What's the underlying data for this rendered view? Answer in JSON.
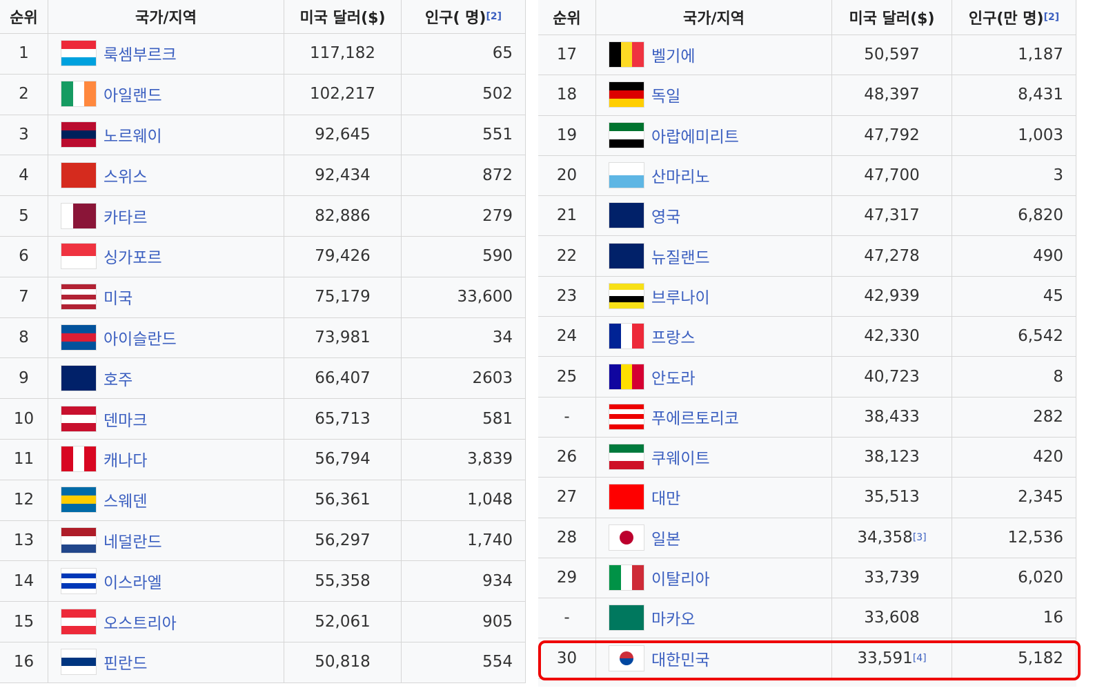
{
  "left_table": {
    "header": {
      "rank": "순위",
      "country": "국가/지역",
      "usd": "미국 달러($)",
      "population": "인구(   명)",
      "population_note": "[2]"
    },
    "rows": [
      {
        "rank": "1",
        "country": "룩셈부르크",
        "usd": "117,182",
        "population": "65"
      },
      {
        "rank": "2",
        "country": "아일랜드",
        "usd": "102,217",
        "population": "502"
      },
      {
        "rank": "3",
        "country": "노르웨이",
        "usd": "92,645",
        "population": "551"
      },
      {
        "rank": "4",
        "country": "스위스",
        "usd": "92,434",
        "population": "872"
      },
      {
        "rank": "5",
        "country": "카타르",
        "usd": "82,886",
        "population": "279"
      },
      {
        "rank": "6",
        "country": "싱가포르",
        "usd": "79,426",
        "population": "590"
      },
      {
        "rank": "7",
        "country": "미국",
        "usd": "75,179",
        "population": "33,600"
      },
      {
        "rank": "8",
        "country": "아이슬란드",
        "usd": "73,981",
        "population": "34"
      },
      {
        "rank": "9",
        "country": "호주",
        "usd": "66,407",
        "population": "2603"
      },
      {
        "rank": "10",
        "country": "덴마크",
        "usd": "65,713",
        "population": "581"
      },
      {
        "rank": "11",
        "country": "캐나다",
        "usd": "56,794",
        "population": "3,839"
      },
      {
        "rank": "12",
        "country": "스웨덴",
        "usd": "56,361",
        "population": "1,048"
      },
      {
        "rank": "13",
        "country": "네덜란드",
        "usd": "56,297",
        "population": "1,740"
      },
      {
        "rank": "14",
        "country": "이스라엘",
        "usd": "55,358",
        "population": "934"
      },
      {
        "rank": "15",
        "country": "오스트리아",
        "usd": "52,061",
        "population": "905"
      },
      {
        "rank": "16",
        "country": "핀란드",
        "usd": "50,818",
        "population": "554"
      }
    ]
  },
  "right_table": {
    "header": {
      "rank": "순위",
      "country": "국가/지역",
      "usd": "미국 달러($)",
      "population": "인구(만 명)",
      "population_note": "[2]"
    },
    "rows": [
      {
        "rank": "17",
        "country": "벨기에",
        "usd": "50,597",
        "population": "1,187"
      },
      {
        "rank": "18",
        "country": "독일",
        "usd": "48,397",
        "population": "8,431"
      },
      {
        "rank": "19",
        "country": "아랍에미리트",
        "usd": "47,792",
        "population": "1,003"
      },
      {
        "rank": "20",
        "country": "산마리노",
        "usd": "47,700",
        "population": "3"
      },
      {
        "rank": "21",
        "country": "영국",
        "usd": "47,317",
        "population": "6,820"
      },
      {
        "rank": "22",
        "country": "뉴질랜드",
        "usd": "47,278",
        "population": "490"
      },
      {
        "rank": "23",
        "country": "브루나이",
        "usd": "42,939",
        "population": "45"
      },
      {
        "rank": "24",
        "country": "프랑스",
        "usd": "42,330",
        "population": "6,542"
      },
      {
        "rank": "25",
        "country": "안도라",
        "usd": "40,723",
        "population": "8"
      },
      {
        "rank": "-",
        "country": "푸에르토리코",
        "usd": "38,433",
        "population": "282"
      },
      {
        "rank": "26",
        "country": "쿠웨이트",
        "usd": "38,123",
        "population": "420"
      },
      {
        "rank": "27",
        "country": "대만",
        "usd": "35,513",
        "population": "2,345"
      },
      {
        "rank": "28",
        "country": "일본",
        "usd": "34,358",
        "usd_note": "[3]",
        "population": "12,536"
      },
      {
        "rank": "29",
        "country": "이탈리아",
        "usd": "33,739",
        "population": "6,020"
      },
      {
        "rank": "-",
        "country": "마카오",
        "usd": "33,608",
        "population": "16"
      },
      {
        "rank": "30",
        "country": "대한민국",
        "usd": "33,591",
        "usd_note": "[4]",
        "population": "5,182"
      }
    ]
  }
}
